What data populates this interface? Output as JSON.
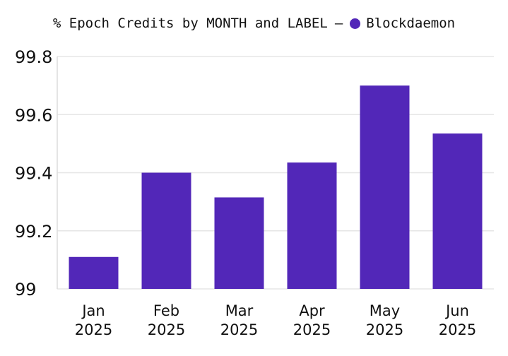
{
  "chart_data": {
    "type": "bar",
    "title": "% Epoch Credits by MONTH and LABEL",
    "legend_separator": "—",
    "legend_placement": "top-center",
    "series": [
      {
        "name": "Blockdaemon",
        "color": "#5227b8",
        "values": [
          99.11,
          99.4,
          99.315,
          99.435,
          99.7,
          99.535
        ]
      }
    ],
    "categories": [
      {
        "month": "Jan",
        "year": "2025"
      },
      {
        "month": "Feb",
        "year": "2025"
      },
      {
        "month": "Mar",
        "year": "2025"
      },
      {
        "month": "Apr",
        "year": "2025"
      },
      {
        "month": "May",
        "year": "2025"
      },
      {
        "month": "Jun",
        "year": "2025"
      }
    ],
    "ylim": [
      99.0,
      99.8
    ],
    "yticks": [
      99.0,
      99.2,
      99.4,
      99.6,
      99.8
    ],
    "ytick_labels": [
      "99",
      "99.2",
      "99.4",
      "99.6",
      "99.8"
    ],
    "grid": true,
    "xlabel": "",
    "ylabel": ""
  }
}
